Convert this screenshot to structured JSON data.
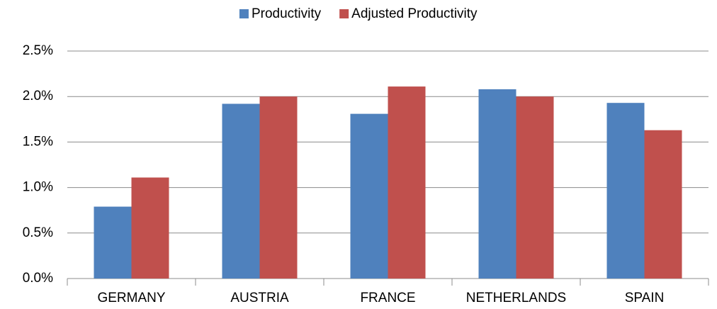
{
  "chart_data": {
    "type": "bar",
    "categories": [
      "GERMANY",
      "AUSTRIA",
      "FRANCE",
      "NETHERLANDS",
      "SPAIN"
    ],
    "series": [
      {
        "name": "Productivity",
        "color": "#4f81bd",
        "values": [
          0.79,
          1.92,
          1.81,
          2.08,
          1.93
        ]
      },
      {
        "name": "Adjusted Productivity",
        "color": "#c0504d",
        "values": [
          1.11,
          2.0,
          2.11,
          2.0,
          1.63
        ]
      }
    ],
    "ylim": [
      0,
      2.5
    ],
    "yticks": [
      {
        "value": 0,
        "label": "0.0%"
      },
      {
        "value": 0.5,
        "label": "0.5%"
      },
      {
        "value": 1,
        "label": "1.0%"
      },
      {
        "value": 1.5,
        "label": "1.5%"
      },
      {
        "value": 2,
        "label": "2.0%"
      },
      {
        "value": 2.5,
        "label": "2.5%"
      }
    ],
    "grid": true,
    "legend": "top"
  }
}
